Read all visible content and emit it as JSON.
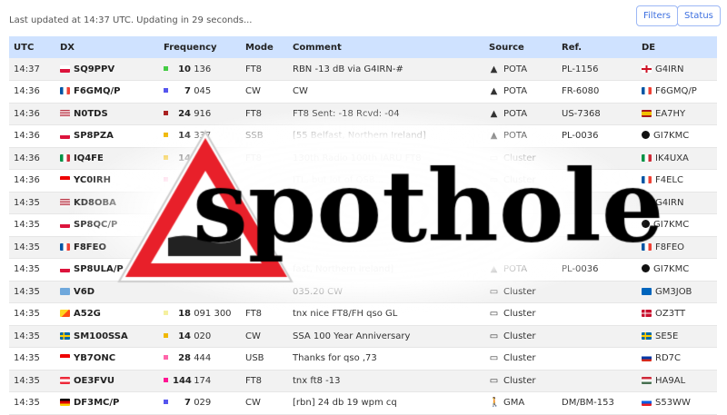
{
  "status_text": "Last updated at 14:37 UTC. Updating in 29 seconds...",
  "buttons": {
    "filters": "Filters",
    "status": "Status"
  },
  "columns": [
    "UTC",
    "DX",
    "Frequency",
    "Mode",
    "Comment",
    "Source",
    "Ref.",
    "DE"
  ],
  "logo_text": "spothole",
  "band_colors": {
    "30m": "#44cc44",
    "40m": "#5555ee",
    "12m": "#aa2222",
    "20m": "#f0b800",
    "10m": "#ff66aa",
    "2m": "#ff1493",
    "17m": "#f5f0a0"
  },
  "rows": [
    {
      "utc": "14:37",
      "flag": "pl",
      "dx": "SQ9PPV",
      "band": "30m",
      "mhz": "10",
      "khz": "136",
      "mode": "FT8",
      "comment": "RBN -13 dB via G4IRN-#",
      "source_icon": "tree-icon",
      "source": "POTA",
      "ref": "PL-1156",
      "de_flag": "en",
      "de": "G4IRN"
    },
    {
      "utc": "14:36",
      "flag": "fr",
      "dx": "F6GMQ/P",
      "band": "40m",
      "mhz": "7",
      "khz": "045",
      "mode": "CW",
      "comment": "CW",
      "source_icon": "tree-icon",
      "source": "POTA",
      "ref": "FR-6080",
      "de_flag": "fr",
      "de": "F6GMQ/P"
    },
    {
      "utc": "14:36",
      "flag": "us",
      "dx": "N0TDS",
      "band": "12m",
      "mhz": "24",
      "khz": "916",
      "mode": "FT8",
      "comment": "FT8 Sent: -18 Rcvd: -04",
      "source_icon": "tree-icon",
      "source": "POTA",
      "ref": "US-7368",
      "de_flag": "es",
      "de": "EA7HY"
    },
    {
      "utc": "14:36",
      "flag": "pl",
      "dx": "SP8PZA",
      "band": "20m",
      "mhz": "14",
      "khz": "337",
      "mode": "SSB",
      "comment": "[55 Belfast, Northern Ireland]",
      "source_icon": "tree-icon",
      "source": "POTA",
      "ref": "PL-0036",
      "de_flag": "unknown",
      "de": "GI7KMC"
    },
    {
      "utc": "14:36",
      "flag": "it",
      "dx": "IQ4FE",
      "band": "20m",
      "mhz": "14",
      "khz": "",
      "mode": "FT8",
      "comment": "130th Radio 100th IARU FT8",
      "source_icon": "monitor-icon",
      "source": "Cluster",
      "ref": "",
      "de_flag": "it",
      "de": "IK4UXA"
    },
    {
      "utc": "14:36",
      "flag": "id",
      "dx": "YC0IRH",
      "band": "10m",
      "mhz": "",
      "khz": "",
      "mode": "",
      "comment": "ITL, but lot of QSB...",
      "source_icon": "monitor-icon",
      "source": "Cluster",
      "ref": "",
      "de_flag": "fr",
      "de": "F4ELC"
    },
    {
      "utc": "14:35",
      "flag": "us",
      "dx": "KD8OBA",
      "band": "",
      "mhz": "",
      "khz": "",
      "mode": "",
      "comment": "",
      "source_icon": "",
      "source": "",
      "ref": "",
      "de_flag": "en",
      "de": "G4IRN"
    },
    {
      "utc": "14:35",
      "flag": "pl",
      "dx": "SP8QC/P",
      "band": "",
      "mhz": "",
      "khz": "",
      "mode": "",
      "comment": "",
      "source_icon": "",
      "source": "",
      "ref": "",
      "de_flag": "unknown",
      "de": "GI7KMC"
    },
    {
      "utc": "14:35",
      "flag": "fr",
      "dx": "F8FEO",
      "band": "",
      "mhz": "",
      "khz": "",
      "mode": "",
      "comment": "",
      "source_icon": "",
      "source": "",
      "ref": "",
      "de_flag": "fr",
      "de": "F8FEO"
    },
    {
      "utc": "14:35",
      "flag": "pl",
      "dx": "SP8ULA/P",
      "band": "",
      "mhz": "",
      "khz": "",
      "mode": "",
      "comment": "fast, Northern Ireland]",
      "source_icon": "tree-icon",
      "source": "POTA",
      "ref": "PL-0036",
      "de_flag": "unknown",
      "de": "GI7KMC"
    },
    {
      "utc": "14:35",
      "flag": "fm",
      "dx": "V6D",
      "band": "",
      "mhz": "",
      "khz": "",
      "mode": "",
      "comment": "035.20 CW",
      "source_icon": "monitor-icon",
      "source": "Cluster",
      "ref": "",
      "de_flag": "sc",
      "de": "GM3JOB"
    },
    {
      "utc": "14:35",
      "flag": "bt",
      "dx": "A52G",
      "band": "17m",
      "mhz": "18",
      "khz": "091 300",
      "mode": "FT8",
      "comment": "tnx nice FT8/FH qso GL",
      "source_icon": "monitor-icon",
      "source": "Cluster",
      "ref": "",
      "de_flag": "dk",
      "de": "OZ3TT"
    },
    {
      "utc": "14:35",
      "flag": "se",
      "dx": "SM100SSA",
      "band": "20m",
      "mhz": "14",
      "khz": "020",
      "mode": "CW",
      "comment": "SSA 100 Year Anniversary",
      "source_icon": "monitor-icon",
      "source": "Cluster",
      "ref": "",
      "de_flag": "se",
      "de": "SE5E"
    },
    {
      "utc": "14:35",
      "flag": "id",
      "dx": "YB7ONC",
      "band": "10m",
      "mhz": "28",
      "khz": "444",
      "mode": "USB",
      "comment": "Thanks for qso ,73",
      "source_icon": "monitor-icon",
      "source": "Cluster",
      "ref": "",
      "de_flag": "ru",
      "de": "RD7C"
    },
    {
      "utc": "14:35",
      "flag": "at",
      "dx": "OE3FVU",
      "band": "2m",
      "mhz": "144",
      "khz": "174",
      "mode": "FT8",
      "comment": "tnx ft8 -13",
      "source_icon": "monitor-icon",
      "source": "Cluster",
      "ref": "",
      "de_flag": "hu",
      "de": "HA9AL"
    },
    {
      "utc": "14:35",
      "flag": "de",
      "dx": "DF3MC/P",
      "band": "40m",
      "mhz": "7",
      "khz": "029",
      "mode": "CW",
      "comment": "[rbn] 24 db 19 wpm cq",
      "source_icon": "hiker-icon",
      "source": "GMA",
      "ref": "DM/BM-153",
      "de_flag": "si",
      "de": "S53WW"
    }
  ]
}
